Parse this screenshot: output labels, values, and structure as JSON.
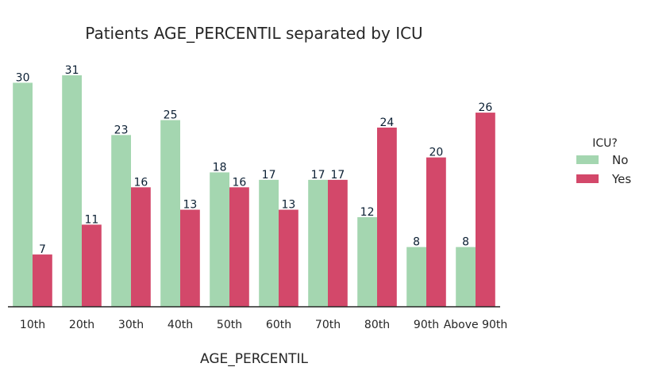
{
  "chart_data": {
    "type": "bar",
    "title": "Patients AGE_PERCENTIL separated by ICU",
    "xlabel": "AGE_PERCENTIL",
    "ylabel": "",
    "categories": [
      "10th",
      "20th",
      "30th",
      "40th",
      "50th",
      "60th",
      "70th",
      "80th",
      "90th",
      "Above 90th"
    ],
    "series": [
      {
        "name": "No",
        "color": "#a4d6b0",
        "values": [
          30,
          31,
          23,
          25,
          18,
          17,
          17,
          12,
          8,
          8
        ]
      },
      {
        "name": "Yes",
        "color": "#d3486a",
        "values": [
          7,
          11,
          16,
          13,
          16,
          13,
          17,
          24,
          20,
          26
        ]
      }
    ],
    "ylim": [
      0,
      31
    ],
    "grid": false,
    "legend": {
      "title": "ICU?",
      "placement": "right"
    },
    "data_labels": true
  }
}
